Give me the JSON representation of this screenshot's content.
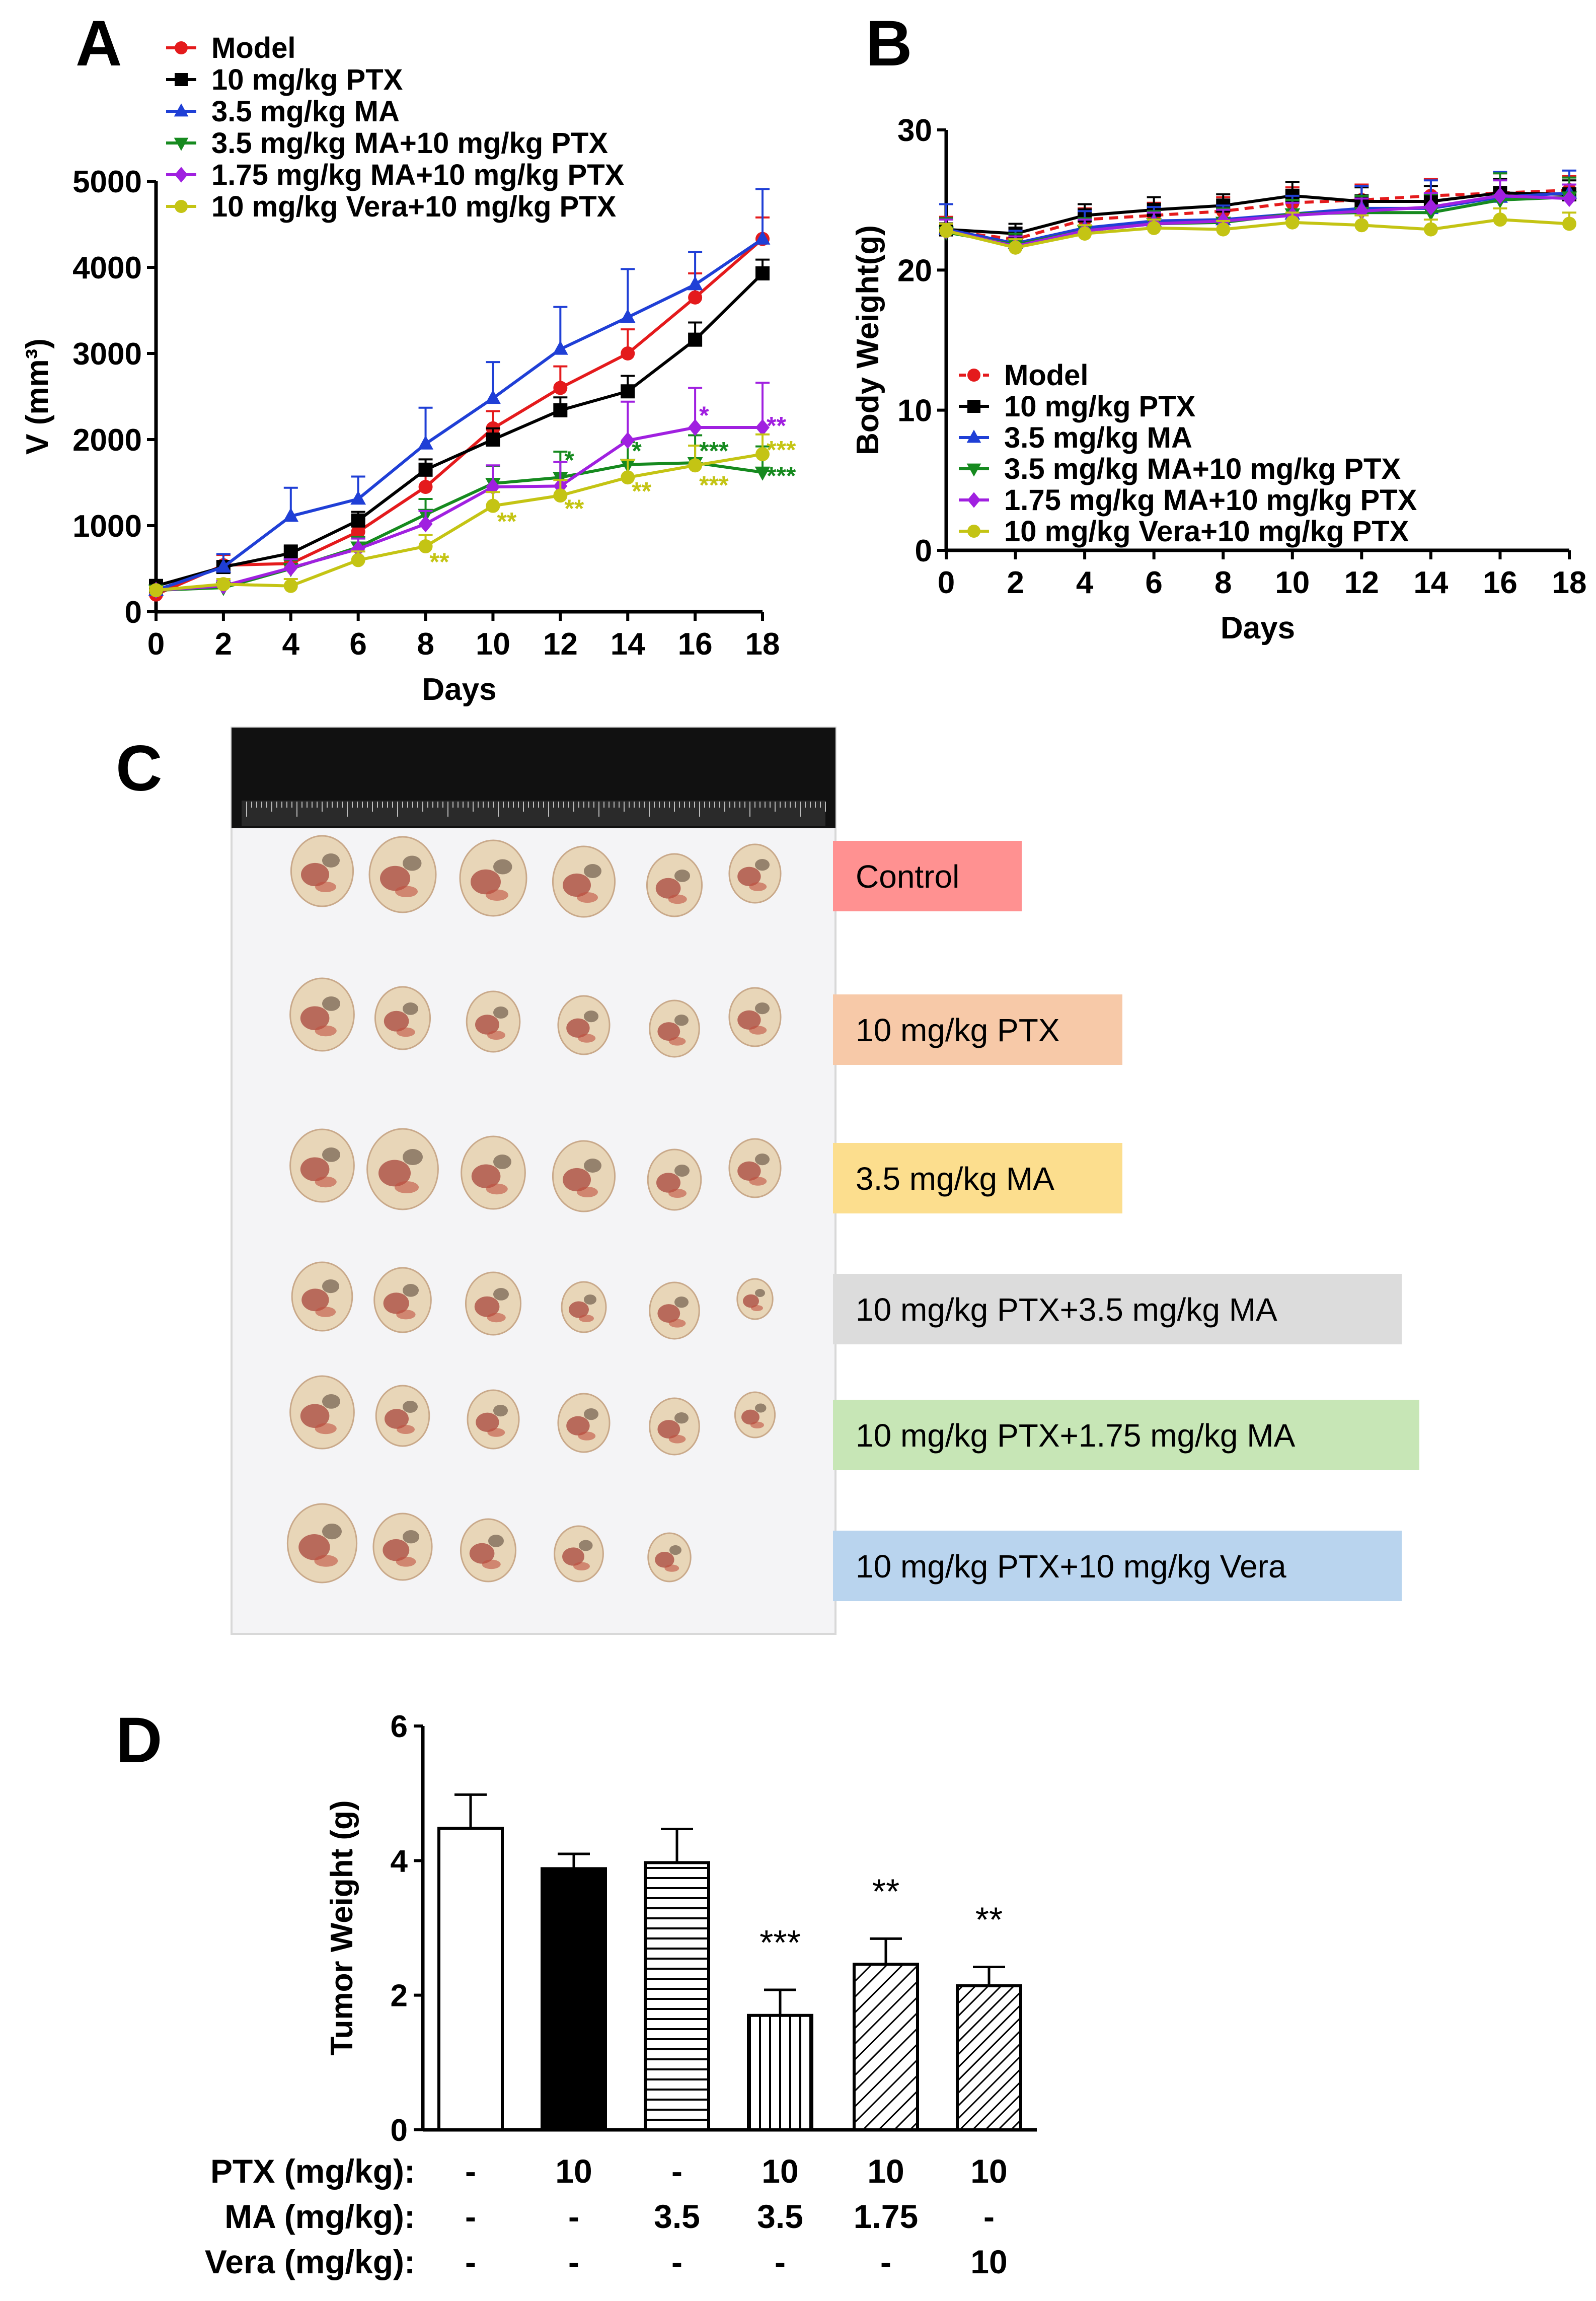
{
  "colors": {
    "Model": "#e41a1c",
    "PTX": "#000000",
    "MA": "#1f3fd6",
    "MA_PTX": "#168a1f",
    "MA175_PTX": "#a020e0",
    "Vera_PTX": "#c4c414"
  },
  "chart_data": [
    {
      "panel": "A",
      "type": "line",
      "xlabel": "Days",
      "ylabel": "V (mm³)",
      "ylim": [
        0,
        5000
      ],
      "xlim": [
        0,
        18
      ],
      "xticks": [
        0,
        2,
        4,
        6,
        8,
        10,
        12,
        14,
        16,
        18
      ],
      "yticks": [
        0,
        1000,
        2000,
        3000,
        4000,
        5000
      ],
      "legend_position": "top-left",
      "series": [
        {
          "name": "Model",
          "key": "Model",
          "marker": "circle",
          "values": [
            200,
            540,
            560,
            930,
            1450,
            2130,
            2600,
            3000,
            3650,
            4330
          ],
          "err": [
            40,
            120,
            130,
            150,
            200,
            200,
            250,
            280,
            280,
            250
          ]
        },
        {
          "name": "10 mg/kg PTX",
          "key": "PTX",
          "marker": "square",
          "values": [
            300,
            520,
            680,
            1060,
            1650,
            2000,
            2340,
            2560,
            3160,
            3930
          ],
          "err": [
            40,
            60,
            90,
            100,
            120,
            130,
            150,
            180,
            200,
            160
          ]
        },
        {
          "name": "3.5 mg/kg MA",
          "key": "MA",
          "marker": "triangle-up",
          "values": [
            250,
            520,
            1110,
            1310,
            1950,
            2480,
            3050,
            3420,
            3800,
            4330
          ],
          "err": [
            40,
            150,
            330,
            260,
            420,
            420,
            490,
            560,
            380,
            580
          ]
        },
        {
          "name": "3.5 mg/kg MA+10 mg/kg PTX",
          "key": "MA_PTX",
          "marker": "triangle-down",
          "values": [
            250,
            280,
            500,
            750,
            1130,
            1490,
            1560,
            1710,
            1730,
            1620
          ],
          "err": [
            40,
            60,
            100,
            120,
            180,
            200,
            300,
            260,
            320,
            300
          ]
        },
        {
          "name": "1.75 mg/kg MA+10 mg/kg PTX",
          "key": "MA175_PTX",
          "marker": "diamond",
          "values": [
            250,
            300,
            510,
            730,
            1020,
            1450,
            1460,
            1990,
            2140,
            2140
          ],
          "err": [
            40,
            60,
            100,
            120,
            150,
            250,
            280,
            450,
            460,
            520
          ]
        },
        {
          "name": "10 mg/kg Vera+10 mg/kg PTX",
          "key": "Vera_PTX",
          "marker": "circle",
          "values": [
            250,
            320,
            300,
            600,
            760,
            1230,
            1350,
            1560,
            1700,
            1830
          ],
          "err": [
            40,
            60,
            80,
            100,
            130,
            160,
            180,
            200,
            230,
            230
          ]
        }
      ],
      "annotations": [
        {
          "text": "*",
          "key": "MA_PTX",
          "x": 12,
          "y": 1660
        },
        {
          "text": "*",
          "key": "MA_PTX",
          "x": 14,
          "y": 1770
        },
        {
          "text": "***",
          "key": "MA_PTX",
          "x": 16,
          "y": 1770
        },
        {
          "text": "***",
          "key": "MA_PTX",
          "x": 18,
          "y": 1480
        },
        {
          "text": "*",
          "key": "MA175_PTX",
          "x": 16,
          "y": 2180
        },
        {
          "text": "**",
          "key": "MA175_PTX",
          "x": 18,
          "y": 2060
        },
        {
          "text": "***",
          "key": "Vera_PTX",
          "x": 18,
          "y": 1780
        },
        {
          "text": "**",
          "key": "Vera_PTX",
          "x": 8,
          "y": 480
        },
        {
          "text": "**",
          "key": "Vera_PTX",
          "x": 10,
          "y": 950
        },
        {
          "text": "**",
          "key": "Vera_PTX",
          "x": 12,
          "y": 1100
        },
        {
          "text": "**",
          "key": "Vera_PTX",
          "x": 14,
          "y": 1300
        },
        {
          "text": "***",
          "key": "Vera_PTX",
          "x": 16,
          "y": 1370
        }
      ]
    },
    {
      "panel": "B",
      "type": "line",
      "xlabel": "Days",
      "ylabel": "Body Weight(g)",
      "ylim": [
        0,
        30
      ],
      "xlim": [
        0,
        18
      ],
      "xticks": [
        0,
        2,
        4,
        6,
        8,
        10,
        12,
        14,
        16,
        18
      ],
      "yticks": [
        0,
        10,
        20,
        30
      ],
      "legend_position": "bottom-left",
      "series": [
        {
          "name": "Model",
          "key": "Model",
          "marker": "circle",
          "dashed": true,
          "values": [
            22.8,
            22.2,
            23.6,
            23.9,
            24.2,
            24.8,
            25.0,
            25.3,
            25.5,
            25.7
          ],
          "err": [
            1.0,
            0.8,
            0.8,
            0.9,
            1.0,
            1.1,
            1.1,
            1.2,
            1.4,
            1.0
          ]
        },
        {
          "name": "10 mg/kg PTX",
          "key": "PTX",
          "marker": "square",
          "values": [
            22.9,
            22.6,
            23.9,
            24.3,
            24.6,
            25.3,
            24.9,
            24.9,
            25.5,
            25.4
          ],
          "err": [
            0.8,
            0.7,
            0.8,
            0.9,
            0.8,
            1.0,
            1.0,
            1.1,
            1.0,
            1.0
          ]
        },
        {
          "name": "3.5 mg/kg MA",
          "key": "MA",
          "marker": "triangle-up",
          "values": [
            22.9,
            21.9,
            23.0,
            23.5,
            23.6,
            24.0,
            24.4,
            24.4,
            25.2,
            25.5
          ],
          "err": [
            1.8,
            0.9,
            1.2,
            1.0,
            1.0,
            1.3,
            1.6,
            2.0,
            1.8,
            1.6
          ]
        },
        {
          "name": "3.5 mg/kg MA+10 mg/kg PTX",
          "key": "MA_PTX",
          "marker": "triangle-down",
          "values": [
            22.7,
            21.8,
            22.8,
            23.3,
            23.4,
            24.0,
            24.1,
            24.1,
            25.0,
            25.2
          ],
          "err": [
            1.0,
            0.8,
            0.9,
            0.9,
            1.0,
            1.0,
            1.2,
            1.3,
            1.9,
            1.4
          ]
        },
        {
          "name": "1.75 mg/kg MA+10 mg/kg PTX",
          "key": "MA175_PTX",
          "marker": "diamond",
          "values": [
            22.8,
            21.7,
            22.8,
            23.3,
            23.5,
            23.9,
            24.2,
            24.5,
            25.3,
            25.1
          ],
          "err": [
            0.8,
            0.7,
            0.8,
            0.8,
            0.8,
            0.9,
            0.9,
            1.0,
            1.1,
            1.0
          ]
        },
        {
          "name": "10 mg/kg Vera+10 mg/kg PTX",
          "key": "Vera_PTX",
          "marker": "circle",
          "values": [
            22.8,
            21.6,
            22.6,
            23.0,
            22.9,
            23.4,
            23.2,
            22.9,
            23.6,
            23.3
          ],
          "err": [
            0.5,
            0.6,
            0.6,
            0.6,
            0.6,
            0.7,
            0.7,
            0.7,
            0.8,
            0.8
          ]
        }
      ]
    },
    {
      "panel": "D",
      "type": "bar",
      "ylabel": "Tumor Weight (g)",
      "ylim": [
        0,
        6
      ],
      "yticks": [
        0,
        2,
        4,
        6
      ],
      "values": [
        4.48,
        3.88,
        3.97,
        1.7,
        2.46,
        2.14
      ],
      "err": [
        0.5,
        0.22,
        0.5,
        0.38,
        0.38,
        0.28
      ],
      "fills": [
        "white",
        "black",
        "horizontal",
        "vertical",
        "diag",
        "diag-dense"
      ],
      "significance": [
        "",
        "",
        "",
        "***",
        "**",
        "**"
      ],
      "table": {
        "rows": [
          {
            "label": "PTX (mg/kg):",
            "values": [
              "-",
              "10",
              "-",
              "10",
              "10",
              "10"
            ]
          },
          {
            "label": "MA (mg/kg):",
            "values": [
              "-",
              "-",
              "3.5",
              "3.5",
              "1.75",
              "-"
            ]
          },
          {
            "label": "Vera (mg/kg):",
            "values": [
              "-",
              "-",
              "-",
              "-",
              "-",
              "10"
            ]
          }
        ]
      }
    }
  ],
  "panel_labels": {
    "A": "A",
    "B": "B",
    "C": "C",
    "D": "D"
  },
  "panel_c": {
    "labels": [
      {
        "text": "Control",
        "color": "#ff9191"
      },
      {
        "text": "10 mg/kg PTX",
        "color": "#f7c9a8"
      },
      {
        "text": "3.5 mg/kg MA",
        "color": "#fcde8e"
      },
      {
        "text": "10 mg/kg PTX+3.5 mg/kg MA",
        "color": "#dcdcdc"
      },
      {
        "text": "10 mg/kg PTX+1.75 mg/kg MA",
        "color": "#c7e6b6"
      },
      {
        "text": "10 mg/kg PTX+10 mg/kg Vera",
        "color": "#b9d4ee"
      }
    ],
    "tumor_counts": [
      6,
      6,
      6,
      6,
      6,
      5
    ]
  }
}
